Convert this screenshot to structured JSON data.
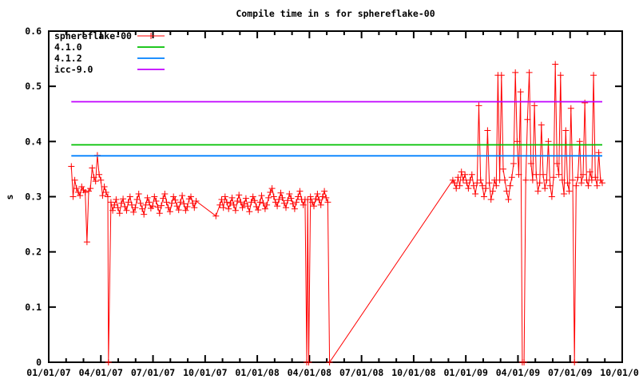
{
  "colors": {
    "background": "#ffffff",
    "axis": "#000000",
    "text": "#000000"
  },
  "chart_data": {
    "type": "line",
    "title": "Compile time in s for sphereflake-00",
    "ylabel": "s",
    "xlabel": "",
    "grid": false,
    "legend_position": "top-left-inside",
    "ylim": [
      0,
      0.6
    ],
    "y_ticks": [
      "0",
      "0.1",
      "0.2",
      "0.3",
      "0.4",
      "0.5",
      "0.6"
    ],
    "x_unit": "months since 2007-01-01",
    "xlim": [
      0,
      33
    ],
    "x_major_tick_interval_months": 3,
    "x_minor_tick_interval_months": 1,
    "x_tick_labels": [
      "01/01/07",
      "04/01/07",
      "07/01/07",
      "10/01/07",
      "01/01/08",
      "04/01/08",
      "07/01/08",
      "10/01/08",
      "01/01/09",
      "04/01/09",
      "07/01/09",
      "10/01/09"
    ],
    "series": [
      {
        "name": "sphereflake-00",
        "color": "#ff0000",
        "style": "linespoints",
        "marker": "plus",
        "segments": [
          {
            "x_start": 1.3,
            "x_step": 0.1,
            "y": [
              0.355,
              0.3,
              0.33,
              0.315,
              0.308,
              0.302,
              0.318,
              0.312,
              0.308,
              0.218,
              0.31,
              0.315,
              0.352,
              0.335,
              0.328,
              0.375,
              0.34,
              0.33,
              0.302,
              0.318,
              0.308,
              0.3
            ]
          },
          {
            "points": [
              [
                3.44,
                0.0
              ]
            ]
          },
          {
            "x_start": 3.58,
            "x_step": 0.1,
            "y": [
              0.29,
              0.275,
              0.285,
              0.295,
              0.28,
              0.27,
              0.288,
              0.296,
              0.282,
              0.275,
              0.29,
              0.3,
              0.285,
              0.272,
              0.28,
              0.295,
              0.305,
              0.288,
              0.278,
              0.268,
              0.285,
              0.298,
              0.29,
              0.279,
              0.283,
              0.3,
              0.292,
              0.281,
              0.27,
              0.284,
              0.297,
              0.305,
              0.29,
              0.28,
              0.273,
              0.288,
              0.3,
              0.294,
              0.283,
              0.276,
              0.29,
              0.302,
              0.287,
              0.275,
              0.282,
              0.296,
              0.3,
              0.288,
              0.28,
              0.292
            ]
          },
          {
            "points": [
              [
                9.62,
                0.265
              ]
            ]
          },
          {
            "x_start": 9.85,
            "x_step": 0.1,
            "y": [
              0.285,
              0.295,
              0.28,
              0.3,
              0.29,
              0.278,
              0.288,
              0.298,
              0.285,
              0.275,
              0.292,
              0.303,
              0.29,
              0.28,
              0.287,
              0.297,
              0.283,
              0.273,
              0.29,
              0.3,
              0.293,
              0.282,
              0.276,
              0.29,
              0.302,
              0.288,
              0.278,
              0.285,
              0.298,
              0.308,
              0.315,
              0.3,
              0.29,
              0.283,
              0.295,
              0.307,
              0.298,
              0.288,
              0.28,
              0.293,
              0.305,
              0.297,
              0.287,
              0.278,
              0.29,
              0.3,
              0.31,
              0.295,
              0.285,
              0.295
            ]
          },
          {
            "points": [
              [
                14.85,
                0.0
              ],
              [
                14.9,
                0.295
              ],
              [
                14.96,
                0.0
              ]
            ]
          },
          {
            "x_start": 15.06,
            "x_step": 0.1,
            "y": [
              0.3,
              0.29,
              0.283,
              0.296,
              0.305,
              0.294,
              0.285,
              0.3,
              0.31,
              0.298,
              0.29
            ]
          },
          {
            "points": [
              [
                16.16,
                0.0
              ]
            ]
          },
          {
            "x_start": 23.25,
            "x_step": 0.1,
            "y": [
              0.33,
              0.325,
              0.315,
              0.335,
              0.32,
              0.345,
              0.33,
              0.34,
              0.325,
              0.315,
              0.33,
              0.34,
              0.32,
              0.305,
              0.325,
              0.465,
              0.33,
              0.32,
              0.3,
              0.315,
              0.42,
              0.325,
              0.295,
              0.31,
              0.33,
              0.32,
              0.52,
              0.33,
              0.52,
              0.35,
              0.33,
              0.31,
              0.295,
              0.32,
              0.335,
              0.36,
              0.525,
              0.4,
              0.34,
              0.49,
              0.0,
              0.0,
              0.33,
              0.44,
              0.525,
              0.36,
              0.33,
              0.465,
              0.34,
              0.31,
              0.325,
              0.43,
              0.34,
              0.315,
              0.33,
              0.4,
              0.32,
              0.3,
              0.335,
              0.54,
              0.36,
              0.34,
              0.52,
              0.33,
              0.305,
              0.42,
              0.325,
              0.31,
              0.46,
              0.33,
              0.0,
              0.32,
              0.335,
              0.4,
              0.325,
              0.34,
              0.47,
              0.33,
              0.32,
              0.345,
              0.33,
              0.52,
              0.335,
              0.32,
              0.38,
              0.33,
              0.325
            ]
          }
        ]
      },
      {
        "name": "4.1.0",
        "color": "#00c000",
        "style": "line",
        "const_y": 0.394,
        "x_range": [
          1.3,
          31.85
        ]
      },
      {
        "name": "4.1.2",
        "color": "#0080ff",
        "style": "line",
        "const_y": 0.374,
        "x_range": [
          1.3,
          31.85
        ]
      },
      {
        "name": "icc-9.0",
        "color": "#c000ff",
        "style": "line",
        "const_y": 0.472,
        "x_range": [
          1.3,
          31.85
        ]
      }
    ]
  }
}
